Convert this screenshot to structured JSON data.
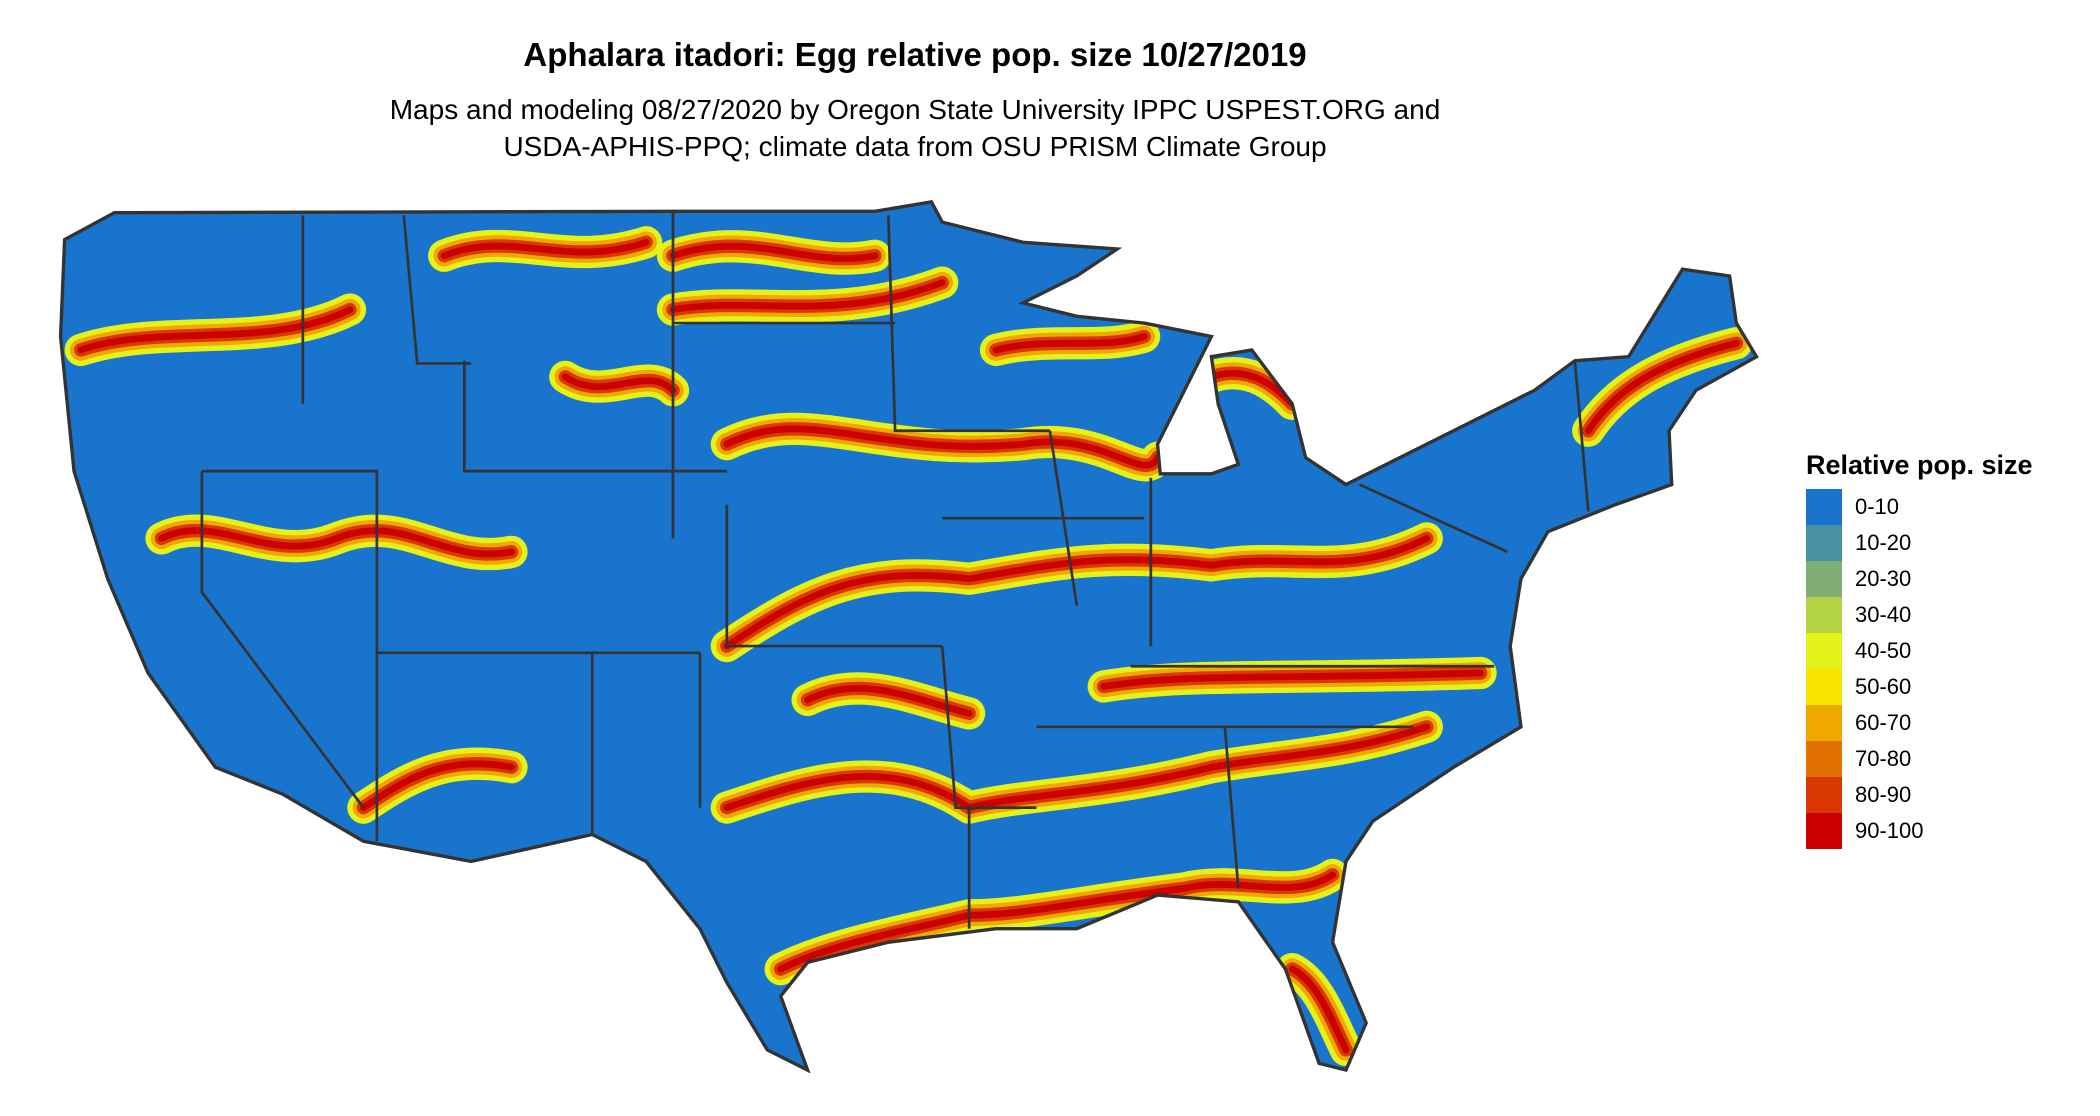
{
  "header": {
    "title": "Aphalara itadori: Egg relative pop. size 10/27/2019",
    "subtitle_line1": "Maps and modeling 08/27/2020 by Oregon State University IPPC USPEST.ORG and",
    "subtitle_line2": "USDA-APHIS-PPQ; climate data from OSU PRISM Climate Group"
  },
  "map": {
    "region": "Contiguous United States",
    "base_color": "#1874CD",
    "border_color": "#333333"
  },
  "legend": {
    "title": "Relative pop. size",
    "items": [
      {
        "label": "0-10",
        "color": "#1874CD"
      },
      {
        "label": "10-20",
        "color": "#4A90A0"
      },
      {
        "label": "20-30",
        "color": "#7FAF73"
      },
      {
        "label": "30-40",
        "color": "#B3D345"
      },
      {
        "label": "40-50",
        "color": "#E5F21A"
      },
      {
        "label": "50-60",
        "color": "#F9E300"
      },
      {
        "label": "60-70",
        "color": "#EFA800"
      },
      {
        "label": "70-80",
        "color": "#E37100"
      },
      {
        "label": "80-90",
        "color": "#D93800"
      },
      {
        "label": "90-100",
        "color": "#CC0000"
      }
    ]
  }
}
